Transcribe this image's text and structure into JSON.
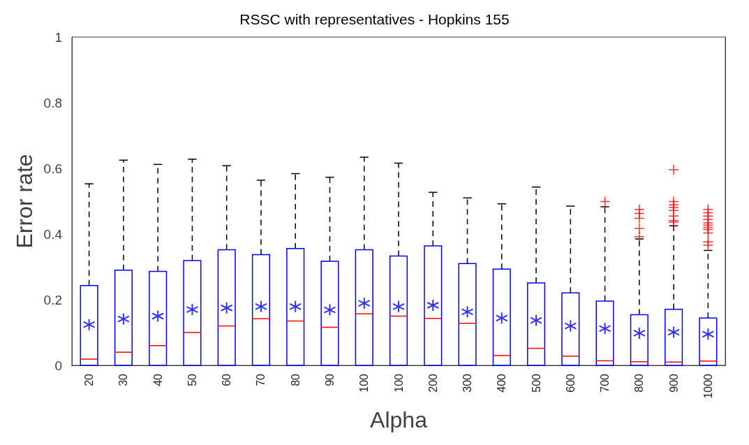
{
  "chart_data": {
    "type": "box",
    "title": "RSSC with representatives - Hopkins 155",
    "xlabel": "Alpha",
    "ylabel": "Error rate",
    "categories": [
      "20",
      "30",
      "40",
      "50",
      "60",
      "70",
      "80",
      "90",
      "100",
      "100",
      "200",
      "300",
      "400",
      "500",
      "600",
      "700",
      "800",
      "900",
      "1000"
    ],
    "color": "#0000ff",
    "boxes": [
      {
        "low": 0,
        "q1": 0,
        "median": 0.019,
        "q3": 0.243,
        "high": 0.553,
        "mean": 0.124
      },
      {
        "low": 0,
        "q1": 0,
        "median": 0.04,
        "q3": 0.29,
        "high": 0.625,
        "mean": 0.141
      },
      {
        "low": 0,
        "q1": 0,
        "median": 0.06,
        "q3": 0.286,
        "high": 0.612,
        "mean": 0.15
      },
      {
        "low": 0,
        "q1": 0,
        "median": 0.1,
        "q3": 0.319,
        "high": 0.628,
        "mean": 0.17
      },
      {
        "low": 0,
        "q1": 0,
        "median": 0.12,
        "q3": 0.352,
        "high": 0.608,
        "mean": 0.175
      },
      {
        "low": 0,
        "q1": 0,
        "median": 0.142,
        "q3": 0.337,
        "high": 0.564,
        "mean": 0.179
      },
      {
        "low": 0,
        "q1": 0,
        "median": 0.135,
        "q3": 0.356,
        "high": 0.584,
        "mean": 0.179
      },
      {
        "low": 0,
        "q1": 0,
        "median": 0.116,
        "q3": 0.317,
        "high": 0.573,
        "mean": 0.169
      },
      {
        "low": 0,
        "q1": 0,
        "median": 0.157,
        "q3": 0.352,
        "high": 0.634,
        "mean": 0.189
      },
      {
        "low": 0,
        "q1": 0,
        "median": 0.15,
        "q3": 0.333,
        "high": 0.616,
        "mean": 0.179
      },
      {
        "low": 0,
        "q1": 0,
        "median": 0.143,
        "q3": 0.364,
        "high": 0.527,
        "mean": 0.183
      },
      {
        "low": 0,
        "q1": 0,
        "median": 0.128,
        "q3": 0.31,
        "high": 0.51,
        "mean": 0.163
      },
      {
        "low": 0,
        "q1": 0,
        "median": 0.03,
        "q3": 0.293,
        "high": 0.492,
        "mean": 0.144
      },
      {
        "low": 0,
        "q1": 0,
        "median": 0.052,
        "q3": 0.251,
        "high": 0.543,
        "mean": 0.137
      },
      {
        "low": 0,
        "q1": 0,
        "median": 0.028,
        "q3": 0.221,
        "high": 0.485,
        "mean": 0.12
      },
      {
        "low": 0,
        "q1": 0,
        "median": 0.014,
        "q3": 0.196,
        "high": 0.483,
        "mean": 0.112,
        "outliers": [
          0.499
        ]
      },
      {
        "low": 0,
        "q1": 0,
        "median": 0.011,
        "q3": 0.154,
        "high": 0.385,
        "mean": 0.098,
        "outliers": [
          0.475,
          0.463,
          0.448,
          0.417,
          0.392
        ]
      },
      {
        "low": 0,
        "q1": 0,
        "median": 0.01,
        "q3": 0.171,
        "high": 0.425,
        "mean": 0.101,
        "outliers": [
          0.596,
          0.499,
          0.489,
          0.481,
          0.472,
          0.455,
          0.441,
          0.436
        ]
      },
      {
        "low": 0,
        "q1": 0,
        "median": 0.013,
        "q3": 0.144,
        "high": 0.35,
        "mean": 0.095,
        "outliers": [
          0.475,
          0.465,
          0.455,
          0.444,
          0.434,
          0.427,
          0.42,
          0.414,
          0.403,
          0.376,
          0.366
        ]
      }
    ],
    "ylim": [
      0,
      1
    ],
    "yticks": [
      0,
      0.2,
      0.4,
      0.6,
      0.8,
      1
    ],
    "grid": false
  }
}
